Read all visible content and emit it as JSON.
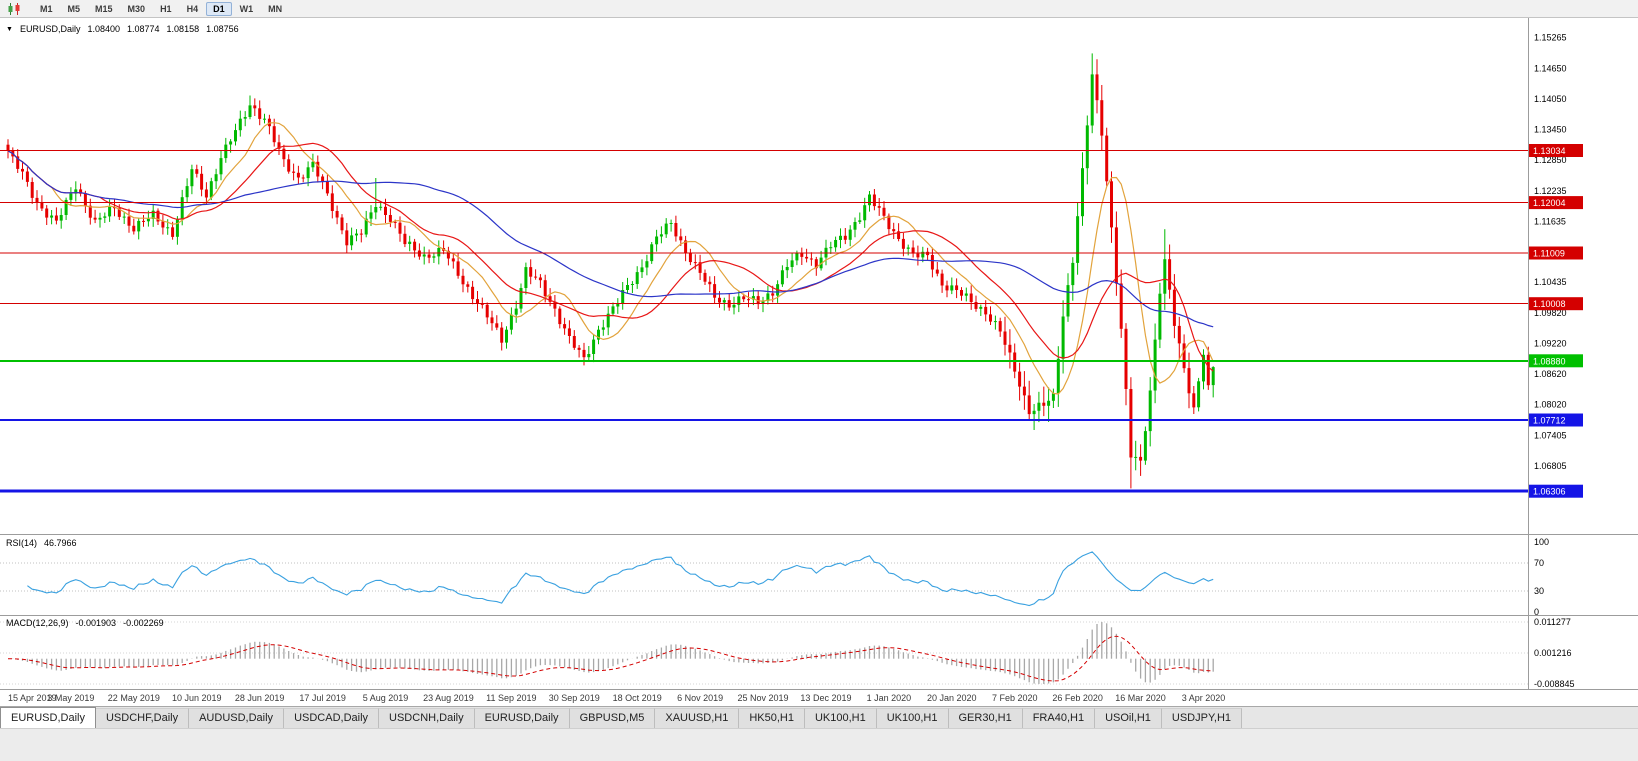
{
  "toolbar": {
    "timeframes": [
      "M1",
      "M5",
      "M15",
      "M30",
      "H1",
      "H4",
      "D1",
      "W1",
      "MN"
    ],
    "active_timeframe": "D1"
  },
  "icons": {
    "collapse": "▼"
  },
  "chart": {
    "symbol_title": "EURUSD,Daily",
    "ohlc": {
      "open": "1.08400",
      "high": "1.08774",
      "low": "1.08158",
      "close": "1.08756"
    }
  },
  "rsi_panel": {
    "name": "RSI(14)",
    "value": "46.7966",
    "ticks": [
      100,
      70,
      30,
      0
    ],
    "guides": [
      70,
      30
    ],
    "line_color": "#3aa1e0"
  },
  "macd_panel": {
    "name": "MACD(12,26,9)",
    "value_main": "-0.001903",
    "value_signal": "-0.002269",
    "ticks": [
      "0.011277",
      "0.001216",
      "-0.008845"
    ],
    "histogram_color": "#a8a8a8",
    "signal_color": "#d40000"
  },
  "chart_data": {
    "type": "candlestick",
    "symbol": "EURUSD",
    "timeframe": "Daily",
    "candles_total": 250,
    "price_range": {
      "top": 1.1565,
      "bottom": 1.055
    },
    "up_color": "#00b900",
    "down_color": "#e60000",
    "price_ticks": [
      "1.15265",
      "1.14650",
      "1.14050",
      "1.13450",
      "1.12850",
      "1.12235",
      "1.11635",
      "1.11035",
      "1.10435",
      "1.09820",
      "1.09220",
      "1.08620",
      "1.08020",
      "1.07405",
      "1.06805"
    ],
    "x_labels": [
      "15 Apr 2019",
      "3 May 2019",
      "22 May 2019",
      "10 Jun 2019",
      "28 Jun 2019",
      "17 Jul 2019",
      "5 Aug 2019",
      "23 Aug 2019",
      "11 Sep 2019",
      "30 Sep 2019",
      "18 Oct 2019",
      "6 Nov 2019",
      "25 Nov 2019",
      "13 Dec 2019",
      "1 Jan 2020",
      "20 Jan 2020",
      "7 Feb 2020",
      "26 Feb 2020",
      "16 Mar 2020",
      "3 Apr 2020"
    ],
    "close_anchors": [
      [
        0,
        1.13
      ],
      [
        3,
        1.1255
      ],
      [
        6,
        1.12
      ],
      [
        10,
        1.116
      ],
      [
        14,
        1.1235
      ],
      [
        18,
        1.116
      ],
      [
        22,
        1.119
      ],
      [
        26,
        1.115
      ],
      [
        30,
        1.1175
      ],
      [
        34,
        1.114
      ],
      [
        38,
        1.1265
      ],
      [
        41,
        1.1215
      ],
      [
        44,
        1.129
      ],
      [
        47,
        1.134
      ],
      [
        50,
        1.1395
      ],
      [
        53,
        1.1365
      ],
      [
        57,
        1.128
      ],
      [
        60,
        1.125
      ],
      [
        63,
        1.1275
      ],
      [
        66,
        1.1215
      ],
      [
        70,
        1.1125
      ],
      [
        73,
        1.114
      ],
      [
        76,
        1.12
      ],
      [
        79,
        1.117
      ],
      [
        82,
        1.112
      ],
      [
        86,
        1.1095
      ],
      [
        90,
        1.1105
      ],
      [
        94,
        1.1045
      ],
      [
        98,
        1.099
      ],
      [
        102,
        1.093
      ],
      [
        105,
        1.1
      ],
      [
        107,
        1.1065
      ],
      [
        110,
        1.104
      ],
      [
        113,
        1.099
      ],
      [
        116,
        1.093
      ],
      [
        119,
        1.089
      ],
      [
        122,
        1.095
      ],
      [
        125,
        1.099
      ],
      [
        128,
        1.1035
      ],
      [
        131,
        1.1075
      ],
      [
        134,
        1.113
      ],
      [
        137,
        1.116
      ],
      [
        140,
        1.1105
      ],
      [
        143,
        1.106
      ],
      [
        146,
        1.1015
      ],
      [
        149,
        1.1
      ],
      [
        152,
        1.101
      ],
      [
        155,
        1.1005
      ],
      [
        158,
        1.1025
      ],
      [
        161,
        1.1075
      ],
      [
        164,
        1.11
      ],
      [
        167,
        1.108
      ],
      [
        170,
        1.1115
      ],
      [
        173,
        1.1135
      ],
      [
        176,
        1.1175
      ],
      [
        178,
        1.121
      ],
      [
        181,
        1.117
      ],
      [
        184,
        1.113
      ],
      [
        187,
        1.1095
      ],
      [
        190,
        1.1095
      ],
      [
        193,
        1.104
      ],
      [
        196,
        1.1025
      ],
      [
        199,
        1.1005
      ],
      [
        202,
        1.0985
      ],
      [
        205,
        1.0945
      ],
      [
        208,
        1.087
      ],
      [
        211,
        1.079
      ],
      [
        214,
        1.08
      ],
      [
        216,
        1.0815
      ],
      [
        218,
        1.098
      ],
      [
        220,
        1.109
      ],
      [
        222,
        1.126
      ],
      [
        224,
        1.145
      ],
      [
        226,
        1.134
      ],
      [
        228,
        1.115
      ],
      [
        230,
        1.095
      ],
      [
        232,
        1.07
      ],
      [
        234,
        1.0685
      ],
      [
        236,
        1.083
      ],
      [
        238,
        1.103
      ],
      [
        239,
        1.1085
      ],
      [
        241,
        1.096
      ],
      [
        243,
        1.087
      ],
      [
        245,
        1.0795
      ],
      [
        247,
        1.09
      ],
      [
        248,
        1.084
      ],
      [
        249,
        1.08756
      ]
    ],
    "wick_overrides": [
      {
        "i": 50,
        "high": 1.1412
      },
      {
        "i": 76,
        "high": 1.1249
      },
      {
        "i": 119,
        "low": 1.0879
      },
      {
        "i": 224,
        "high": 1.1495
      },
      {
        "i": 232,
        "low": 1.0636
      },
      {
        "i": 239,
        "high": 1.1148
      }
    ],
    "last_candle": [
      1.084,
      1.08774,
      1.08158,
      1.08756
    ],
    "ma_overlays": [
      {
        "period": 10,
        "color": "#e2a33c"
      },
      {
        "period": 20,
        "color": "#e81717"
      },
      {
        "period": 50,
        "color": "#2c35c8"
      }
    ],
    "levels": [
      {
        "price": 1.13034,
        "label": "1.13034",
        "color": "#d40000",
        "width": 1
      },
      {
        "price": 1.12004,
        "label": "1.12004",
        "color": "#d40000",
        "width": 1
      },
      {
        "price": 1.11009,
        "label": "1.11009",
        "color": "#d40000",
        "width": 1
      },
      {
        "price": 1.10008,
        "label": "1.10008",
        "color": "#d40000",
        "width": 1
      },
      {
        "price": 1.0888,
        "label": "1.08880",
        "color": "#00c000",
        "width": 2
      },
      {
        "price": 1.07712,
        "label": "1.07712",
        "color": "#1414e6",
        "width": 2
      },
      {
        "price": 1.06306,
        "label": "1.06306",
        "color": "#1414e6",
        "width": 3
      }
    ]
  },
  "tabs": {
    "items": [
      {
        "label": "EURUSD,Daily",
        "active": true
      },
      {
        "label": "USDCHF,Daily",
        "active": false
      },
      {
        "label": "AUDUSD,Daily",
        "active": false
      },
      {
        "label": "USDCAD,Daily",
        "active": false
      },
      {
        "label": "USDCNH,Daily",
        "active": false
      },
      {
        "label": "EURUSD,Daily",
        "active": false
      },
      {
        "label": "GBPUSD,M5",
        "active": false
      },
      {
        "label": "XAUUSD,H1",
        "active": false
      },
      {
        "label": "HK50,H1",
        "active": false
      },
      {
        "label": "UK100,H1",
        "active": false
      },
      {
        "label": "UK100,H1",
        "active": false
      },
      {
        "label": "GER30,H1",
        "active": false
      },
      {
        "label": "FRA40,H1",
        "active": false
      },
      {
        "label": "USOil,H1",
        "active": false
      },
      {
        "label": "USDJPY,H1",
        "active": false
      }
    ]
  }
}
